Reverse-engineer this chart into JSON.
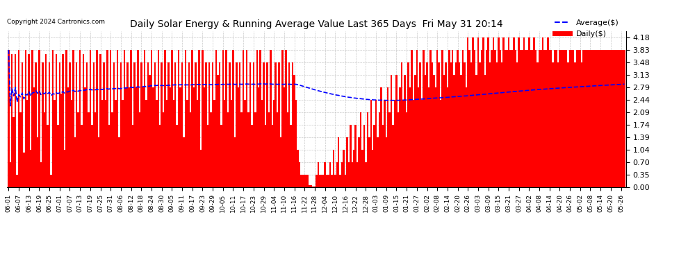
{
  "title": "Daily Solar Energy & Running Average Value Last 365 Days  Fri May 31 20:14",
  "copyright": "Copyright 2024 Cartronics.com",
  "legend_avg": "Average($)",
  "legend_daily": "Daily($)",
  "bar_color": "#ff0000",
  "avg_line_color": "#0000ff",
  "background_color": "#ffffff",
  "plot_bg_color": "#ffffff",
  "grid_color": "#bbbbbb",
  "yticks": [
    0.0,
    0.35,
    0.7,
    1.04,
    1.39,
    1.74,
    2.09,
    2.44,
    2.79,
    3.13,
    3.48,
    3.83,
    4.18
  ],
  "ylim": [
    0.0,
    4.35
  ],
  "x_labels": [
    "06-01",
    "06-07",
    "06-13",
    "06-19",
    "06-25",
    "07-01",
    "07-07",
    "07-13",
    "07-19",
    "07-25",
    "07-31",
    "08-06",
    "08-12",
    "08-18",
    "08-24",
    "08-30",
    "09-05",
    "09-11",
    "09-17",
    "09-23",
    "09-29",
    "10-05",
    "10-11",
    "10-17",
    "10-23",
    "10-29",
    "11-04",
    "11-10",
    "11-16",
    "11-22",
    "11-28",
    "12-04",
    "12-10",
    "12-16",
    "12-22",
    "12-28",
    "01-03",
    "01-09",
    "01-15",
    "01-21",
    "01-27",
    "02-02",
    "02-08",
    "02-14",
    "02-20",
    "02-26",
    "03-03",
    "03-09",
    "03-15",
    "03-21",
    "03-27",
    "04-02",
    "04-08",
    "04-14",
    "04-20",
    "04-26",
    "05-02",
    "05-08",
    "05-14",
    "05-20",
    "05-26"
  ],
  "daily_values": [
    3.83,
    0.7,
    3.71,
    1.95,
    3.71,
    0.35,
    3.83,
    2.09,
    3.48,
    0.96,
    3.83,
    2.44,
    3.71,
    1.04,
    3.83,
    2.79,
    3.48,
    1.39,
    3.83,
    0.7,
    3.48,
    2.09,
    3.71,
    1.74,
    3.48,
    0.35,
    3.83,
    2.44,
    3.71,
    1.74,
    3.48,
    2.61,
    3.71,
    1.04,
    3.83,
    2.79,
    3.48,
    2.44,
    3.83,
    1.39,
    3.48,
    2.09,
    3.83,
    1.74,
    3.71,
    2.79,
    3.48,
    2.09,
    3.83,
    1.74,
    3.48,
    2.09,
    3.83,
    1.39,
    3.71,
    2.44,
    3.48,
    2.44,
    3.83,
    1.74,
    3.83,
    2.09,
    3.48,
    2.44,
    3.83,
    1.39,
    3.48,
    2.44,
    3.83,
    2.79,
    3.48,
    2.79,
    3.83,
    1.74,
    3.48,
    2.79,
    3.83,
    2.09,
    3.48,
    2.79,
    3.83,
    2.44,
    3.48,
    3.13,
    3.83,
    2.79,
    3.48,
    2.44,
    3.83,
    1.74,
    3.48,
    2.09,
    3.83,
    2.44,
    3.48,
    2.79,
    3.83,
    2.44,
    3.48,
    1.74,
    3.83,
    2.79,
    3.48,
    1.39,
    3.83,
    2.44,
    3.48,
    2.09,
    3.83,
    2.79,
    3.48,
    2.44,
    3.83,
    1.04,
    3.83,
    2.79,
    3.48,
    1.74,
    3.48,
    2.09,
    3.48,
    2.44,
    3.83,
    3.13,
    3.48,
    1.74,
    3.83,
    2.44,
    3.83,
    2.09,
    3.48,
    2.44,
    3.83,
    1.39,
    3.48,
    2.79,
    3.48,
    2.09,
    3.83,
    2.44,
    3.83,
    2.09,
    3.48,
    1.74,
    3.48,
    2.09,
    3.83,
    2.79,
    3.83,
    2.44,
    3.48,
    1.74,
    3.48,
    2.09,
    3.83,
    1.74,
    2.44,
    3.48,
    2.09,
    3.48,
    1.39,
    3.83,
    2.79,
    3.83,
    2.09,
    3.48,
    1.74,
    3.48,
    3.13,
    2.44,
    1.04,
    0.7,
    0.35,
    0.35,
    0.35,
    0.35,
    0.35,
    0.05,
    0.05,
    0.02,
    0.02,
    0.35,
    0.7,
    0.35,
    0.35,
    0.35,
    0.7,
    0.35,
    0.35,
    0.7,
    0.35,
    1.04,
    0.35,
    0.7,
    1.39,
    0.35,
    0.7,
    1.04,
    0.35,
    1.39,
    0.7,
    1.74,
    0.7,
    1.04,
    1.74,
    0.7,
    1.39,
    2.09,
    1.04,
    1.74,
    0.7,
    2.09,
    1.39,
    2.44,
    1.04,
    1.74,
    2.44,
    1.39,
    2.09,
    2.79,
    1.74,
    2.44,
    1.39,
    2.79,
    2.09,
    3.13,
    1.74,
    2.44,
    3.13,
    2.09,
    2.79,
    3.48,
    2.44,
    3.13,
    2.09,
    3.48,
    2.79,
    3.83,
    2.44,
    3.13,
    3.83,
    2.79,
    3.48,
    2.44,
    3.83,
    3.13,
    3.48,
    2.79,
    3.83,
    3.48,
    3.13,
    2.79,
    3.83,
    3.48,
    2.44,
    3.83,
    3.13,
    3.48,
    2.79,
    3.83,
    3.48,
    3.83,
    3.13,
    3.48,
    3.83,
    3.48,
    3.13,
    3.83,
    3.48,
    2.79,
    4.18,
    3.83,
    3.48,
    4.18,
    3.83,
    3.13,
    4.18,
    3.48,
    3.83,
    4.18,
    3.13,
    3.83,
    4.18,
    3.48,
    3.83,
    4.18,
    3.83,
    3.48,
    4.18,
    3.83,
    3.48,
    4.18,
    3.83,
    3.83,
    4.18,
    3.83,
    3.83,
    4.18,
    3.83,
    3.48,
    4.18,
    3.83,
    3.83,
    4.18,
    3.83,
    3.83,
    4.18,
    3.83,
    3.83,
    4.18,
    3.83,
    3.48,
    3.83,
    3.83,
    4.18,
    3.83,
    3.83,
    4.18,
    3.83,
    3.83,
    3.48,
    3.83,
    3.83,
    3.48,
    3.83,
    3.83,
    3.83,
    3.83,
    3.83,
    3.48,
    3.83,
    3.83,
    3.83,
    3.48,
    3.83,
    3.83,
    3.83,
    3.48,
    3.83,
    3.83,
    3.83,
    3.83,
    3.83,
    3.83,
    3.83,
    3.83,
    3.83,
    3.83,
    3.83,
    3.83,
    3.83,
    3.83,
    3.83,
    3.83,
    3.83,
    3.83,
    3.83,
    3.83,
    3.83,
    3.83,
    3.83,
    3.83,
    3.83
  ]
}
